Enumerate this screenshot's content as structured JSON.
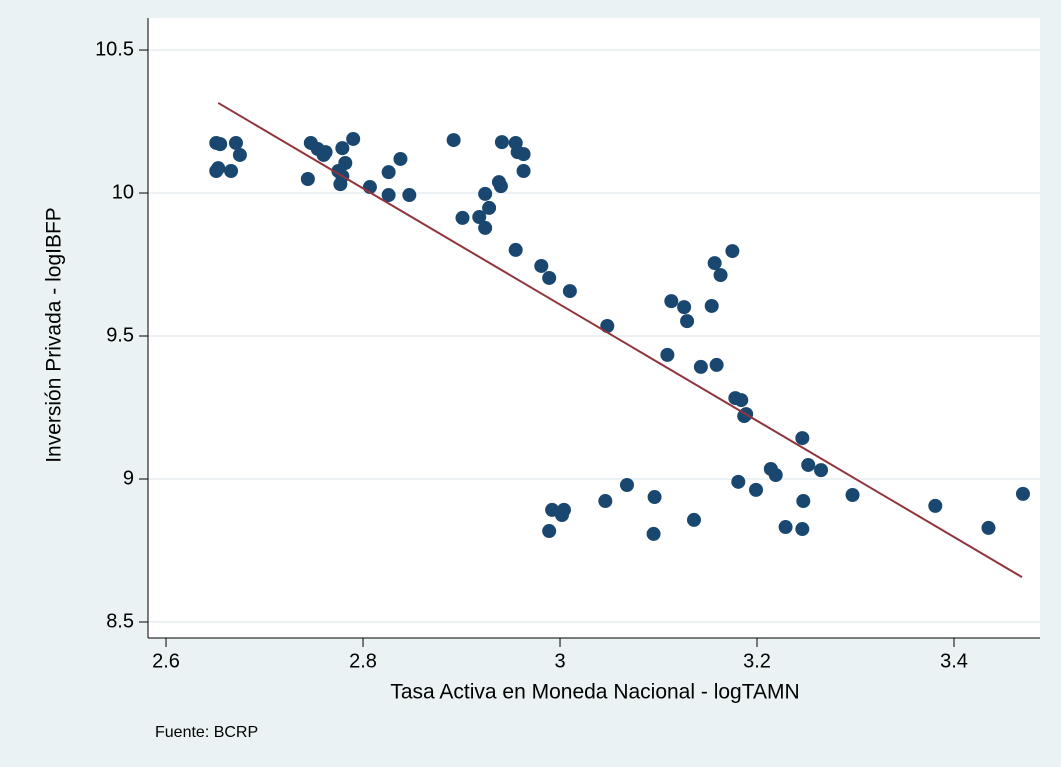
{
  "chart_data": {
    "type": "scatter",
    "x_label": "Tasa Activa en Moneda Nacional - logTAMN",
    "y_label": "Inversión Privada - logIBFP",
    "note": "Fuente: BCRP",
    "color": "#1a476f",
    "grid": true,
    "xlim": [
      2.5817,
      3.4873
    ],
    "ylim": [
      8.444,
      10.612
    ],
    "xticks": [
      2.6,
      2.8,
      3,
      3.2,
      3.4
    ],
    "yticks": [
      8.5,
      9,
      9.5,
      10,
      10.5
    ],
    "x": [
      2.651,
      2.655,
      2.671,
      2.675,
      2.653,
      2.651,
      2.666,
      2.744,
      2.747,
      2.754,
      2.76,
      2.762,
      2.779,
      2.79,
      2.782,
      2.775,
      2.779,
      2.777,
      2.807,
      2.826,
      2.838,
      2.826,
      2.847,
      2.892,
      2.941,
      2.955,
      2.957,
      2.963,
      2.963,
      2.938,
      2.94,
      2.924,
      2.901,
      2.918,
      2.928,
      2.924,
      2.955,
      2.981,
      2.989,
      3.01,
      3.048,
      3.113,
      3.126,
      3.129,
      3.175,
      3.157,
      3.163,
      3.154,
      3.109,
      3.143,
      3.159,
      3.178,
      3.184,
      3.187,
      3.189,
      3.246,
      3.252,
      3.265,
      3.214,
      3.219,
      3.181,
      3.199,
      3.068,
      3.096,
      3.046,
      2.992,
      3.004,
      3.002,
      2.989,
      3.095,
      3.136,
      3.247,
      3.229,
      3.246,
      3.297,
      3.381,
      3.435,
      3.47
    ],
    "values": [
      10.175,
      10.171,
      10.175,
      10.133,
      10.087,
      10.077,
      10.077,
      10.049,
      10.175,
      10.154,
      10.133,
      10.143,
      10.157,
      10.189,
      10.105,
      10.077,
      10.059,
      10.031,
      10.021,
      10.073,
      10.119,
      9.993,
      9.993,
      10.185,
      10.178,
      10.175,
      10.143,
      10.136,
      10.077,
      10.038,
      10.024,
      9.997,
      9.913,
      9.916,
      9.948,
      9.878,
      9.801,
      9.745,
      9.703,
      9.657,
      9.535,
      9.622,
      9.601,
      9.552,
      9.797,
      9.755,
      9.713,
      9.605,
      9.434,
      9.392,
      9.399,
      9.283,
      9.276,
      9.22,
      9.227,
      9.143,
      9.049,
      9.031,
      9.035,
      9.014,
      8.99,
      8.962,
      8.979,
      8.937,
      8.923,
      8.892,
      8.892,
      8.874,
      8.818,
      8.808,
      8.857,
      8.923,
      8.832,
      8.825,
      8.944,
      8.906,
      8.829,
      8.948
    ],
    "fit": {
      "x": [
        2.653,
        3.469
      ],
      "y": [
        10.315,
        8.657
      ],
      "color": "#90353b"
    }
  }
}
